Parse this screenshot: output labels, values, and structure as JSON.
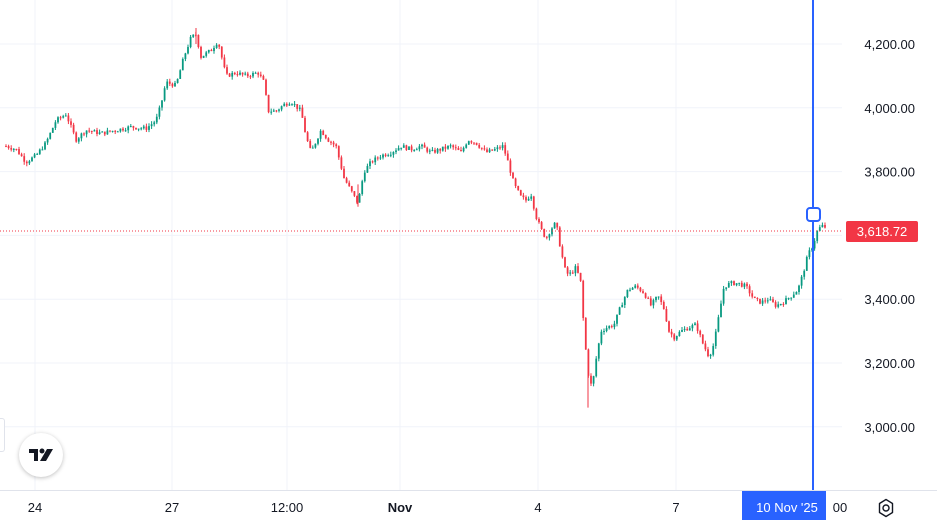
{
  "chart_data": {
    "type": "candlestick",
    "y_axis": {
      "position": "right",
      "ticks": [
        "4,200.00",
        "4,000.00",
        "3,800.00",
        "3,600.00",
        "3,400.00",
        "3,200.00",
        "3,000.00"
      ],
      "tick_values": [
        4200,
        4000,
        3800,
        3600,
        3400,
        3200,
        3000
      ],
      "range": [
        2790,
        4330
      ]
    },
    "x_axis": {
      "ticks": [
        "24",
        "27",
        "12:00",
        "Nov",
        "4",
        "7",
        "00"
      ],
      "bold_ticks": [
        "Nov"
      ],
      "crosshair_label": "10 Nov '25"
    },
    "last_price": {
      "label": "3,618.72",
      "value": 3618.72
    },
    "colors": {
      "up": "#089981",
      "down": "#f23645",
      "crosshair": "#2962ff",
      "grid": "#f0f3fa",
      "price_line": "#f23645"
    },
    "grid": true,
    "price_anchors": [
      [
        0,
        3880
      ],
      [
        10,
        3870
      ],
      [
        20,
        3830
      ],
      [
        30,
        3850
      ],
      [
        40,
        3890
      ],
      [
        50,
        3960
      ],
      [
        60,
        3980
      ],
      [
        70,
        3900
      ],
      [
        80,
        3930
      ],
      [
        95,
        3920
      ],
      [
        110,
        3930
      ],
      [
        125,
        3940
      ],
      [
        140,
        3935
      ],
      [
        150,
        3960
      ],
      [
        155,
        4010
      ],
      [
        160,
        4080
      ],
      [
        170,
        4070
      ],
      [
        178,
        4160
      ],
      [
        185,
        4220
      ],
      [
        190,
        4230
      ],
      [
        195,
        4160
      ],
      [
        205,
        4180
      ],
      [
        212,
        4210
      ],
      [
        220,
        4100
      ],
      [
        230,
        4110
      ],
      [
        240,
        4100
      ],
      [
        252,
        4110
      ],
      [
        258,
        4080
      ],
      [
        262,
        3990
      ],
      [
        270,
        3990
      ],
      [
        278,
        4010
      ],
      [
        285,
        4020
      ],
      [
        295,
        3990
      ],
      [
        300,
        3910
      ],
      [
        305,
        3860
      ],
      [
        315,
        3930
      ],
      [
        322,
        3900
      ],
      [
        330,
        3880
      ],
      [
        338,
        3780
      ],
      [
        345,
        3740
      ],
      [
        352,
        3700
      ],
      [
        358,
        3800
      ],
      [
        365,
        3830
      ],
      [
        375,
        3850
      ],
      [
        385,
        3860
      ],
      [
        395,
        3880
      ],
      [
        405,
        3870
      ],
      [
        415,
        3880
      ],
      [
        425,
        3860
      ],
      [
        435,
        3870
      ],
      [
        445,
        3880
      ],
      [
        455,
        3860
      ],
      [
        462,
        3900
      ],
      [
        470,
        3890
      ],
      [
        480,
        3860
      ],
      [
        490,
        3870
      ],
      [
        497,
        3880
      ],
      [
        502,
        3830
      ],
      [
        508,
        3760
      ],
      [
        515,
        3720
      ],
      [
        520,
        3710
      ],
      [
        525,
        3730
      ],
      [
        530,
        3660
      ],
      [
        535,
        3620
      ],
      [
        540,
        3590
      ],
      [
        545,
        3620
      ],
      [
        550,
        3640
      ],
      [
        555,
        3550
      ],
      [
        560,
        3480
      ],
      [
        565,
        3480
      ],
      [
        570,
        3500
      ],
      [
        575,
        3450
      ],
      [
        578,
        3300
      ],
      [
        582,
        3170
      ],
      [
        586,
        3120
      ],
      [
        590,
        3210
      ],
      [
        595,
        3300
      ],
      [
        600,
        3310
      ],
      [
        608,
        3320
      ],
      [
        615,
        3380
      ],
      [
        622,
        3430
      ],
      [
        630,
        3440
      ],
      [
        638,
        3420
      ],
      [
        645,
        3380
      ],
      [
        652,
        3410
      ],
      [
        658,
        3370
      ],
      [
        663,
        3300
      ],
      [
        668,
        3280
      ],
      [
        675,
        3300
      ],
      [
        682,
        3310
      ],
      [
        690,
        3320
      ],
      [
        697,
        3260
      ],
      [
        703,
        3220
      ],
      [
        708,
        3260
      ],
      [
        713,
        3350
      ],
      [
        718,
        3440
      ],
      [
        725,
        3450
      ],
      [
        732,
        3450
      ],
      [
        740,
        3440
      ],
      [
        748,
        3400
      ],
      [
        755,
        3390
      ],
      [
        762,
        3400
      ],
      [
        770,
        3380
      ],
      [
        777,
        3390
      ],
      [
        785,
        3410
      ],
      [
        792,
        3430
      ],
      [
        797,
        3480
      ],
      [
        802,
        3540
      ],
      [
        807,
        3570
      ],
      [
        812,
        3620
      ],
      [
        817,
        3630
      ],
      [
        822,
        3620
      ],
      [
        826,
        3618.72
      ]
    ]
  },
  "icons": {
    "logo": "tradingview-logo-icon",
    "settings": "gear-icon",
    "crosshair_marker": "crosshair-handle-icon"
  }
}
